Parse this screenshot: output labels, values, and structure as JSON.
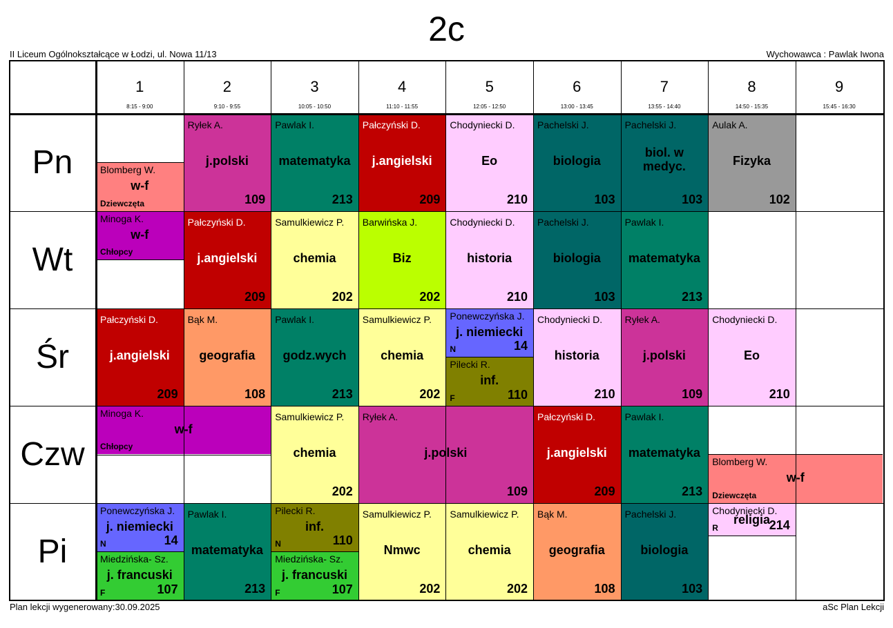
{
  "title": "2c",
  "school": "II Liceum Ogólnokształcące w Łodzi, ul. Nowa 11/13",
  "teacher": "Wychowawca : Pawlak Iwona",
  "footer_left": "Plan lekcji wygenerowany:30.09.2025",
  "footer_right": "aSc Plan Lekcji",
  "periods": [
    {
      "num": "1",
      "time": "8:15 - 9:00"
    },
    {
      "num": "2",
      "time": "9:10 - 9:55"
    },
    {
      "num": "3",
      "time": "10:05 - 10:50"
    },
    {
      "num": "4",
      "time": "11:10 - 11:55"
    },
    {
      "num": "5",
      "time": "12:05 - 12:50"
    },
    {
      "num": "6",
      "time": "13:00 - 13:45"
    },
    {
      "num": "7",
      "time": "13:55 - 14:40"
    },
    {
      "num": "8",
      "time": "14:50 - 15:35"
    },
    {
      "num": "9",
      "time": "15:45 - 16:30"
    }
  ],
  "days": [
    "Pn",
    "Wt",
    "Śr",
    "Czw",
    "Pi"
  ],
  "lessons": [
    {
      "day": 0,
      "period": 0,
      "span": 1,
      "part": "bottom",
      "teacher": "Blomberg W.",
      "subject": "w-f",
      "room": "",
      "group": "Dziewczęta",
      "color": "#ff8080"
    },
    {
      "day": 0,
      "period": 1,
      "span": 1,
      "part": "full",
      "teacher": "Ryłek A.",
      "subject": "j.polski",
      "room": "109",
      "group": "",
      "color": "#cc3399"
    },
    {
      "day": 0,
      "period": 2,
      "span": 1,
      "part": "full",
      "teacher": "Pawlak I.",
      "subject": "matematyka",
      "room": "213",
      "group": "",
      "color": "#008066"
    },
    {
      "day": 0,
      "period": 3,
      "span": 1,
      "part": "full",
      "teacher": "Pałczyński D.",
      "subject": "j.angielski",
      "room": "209",
      "group": "",
      "color": "#c00000",
      "light": true
    },
    {
      "day": 0,
      "period": 4,
      "span": 1,
      "part": "full",
      "teacher": "Chodyniecki D.",
      "subject": "Eo",
      "room": "210",
      "group": "",
      "color": "#ffccff"
    },
    {
      "day": 0,
      "period": 5,
      "span": 1,
      "part": "full",
      "teacher": "Pachelski J.",
      "subject": "biologia",
      "room": "103",
      "group": "",
      "color": "#006666"
    },
    {
      "day": 0,
      "period": 6,
      "span": 1,
      "part": "full",
      "teacher": "Pachelski J.",
      "subject": "biol. w medyc.",
      "room": "103",
      "group": "",
      "color": "#006666"
    },
    {
      "day": 0,
      "period": 7,
      "span": 1,
      "part": "full",
      "teacher": "Aulak A.",
      "subject": "Fizyka",
      "room": "102",
      "group": "",
      "color": "#999999"
    },
    {
      "day": 1,
      "period": 0,
      "span": 1,
      "part": "top",
      "teacher": "Minoga K.",
      "subject": "w-f",
      "room": "",
      "group": "Chłopcy",
      "color": "#bb00bb"
    },
    {
      "day": 1,
      "period": 1,
      "span": 1,
      "part": "full",
      "teacher": "Pałczyński D.",
      "subject": "j.angielski",
      "room": "209",
      "group": "",
      "color": "#c00000",
      "light": true
    },
    {
      "day": 1,
      "period": 2,
      "span": 1,
      "part": "full",
      "teacher": "Samulkiewicz P.",
      "subject": "chemia",
      "room": "202",
      "group": "",
      "color": "#ffff99"
    },
    {
      "day": 1,
      "period": 3,
      "span": 1,
      "part": "full",
      "teacher": "Barwińska J.",
      "subject": "Biz",
      "room": "202",
      "group": "",
      "color": "#bbff00"
    },
    {
      "day": 1,
      "period": 4,
      "span": 1,
      "part": "full",
      "teacher": "Chodyniecki D.",
      "subject": "historia",
      "room": "210",
      "group": "",
      "color": "#ffccff"
    },
    {
      "day": 1,
      "period": 5,
      "span": 1,
      "part": "full",
      "teacher": "Pachelski J.",
      "subject": "biologia",
      "room": "103",
      "group": "",
      "color": "#006666"
    },
    {
      "day": 1,
      "period": 6,
      "span": 1,
      "part": "full",
      "teacher": "Pawlak I.",
      "subject": "matematyka",
      "room": "213",
      "group": "",
      "color": "#008066"
    },
    {
      "day": 2,
      "period": 0,
      "span": 1,
      "part": "full",
      "teacher": "Pałczyński D.",
      "subject": "j.angielski",
      "room": "209",
      "group": "",
      "color": "#c00000",
      "light": true
    },
    {
      "day": 2,
      "period": 1,
      "span": 1,
      "part": "full",
      "teacher": "Bąk M.",
      "subject": "geografia",
      "room": "108",
      "group": "",
      "color": "#ff9966"
    },
    {
      "day": 2,
      "period": 2,
      "span": 1,
      "part": "full",
      "teacher": "Pawlak I.",
      "subject": "godz.wych",
      "room": "213",
      "group": "",
      "color": "#008066"
    },
    {
      "day": 2,
      "period": 3,
      "span": 1,
      "part": "full",
      "teacher": "Samulkiewicz P.",
      "subject": "chemia",
      "room": "202",
      "group": "",
      "color": "#ffff99"
    },
    {
      "day": 2,
      "period": 4,
      "span": 1,
      "part": "top",
      "teacher": "Ponewczyńska J.",
      "subject": "j. niemiecki",
      "room": "14",
      "group": "",
      "gl": "N",
      "color": "#6666ff"
    },
    {
      "day": 2,
      "period": 4,
      "span": 1,
      "part": "bottom",
      "teacher": "Pilecki R.",
      "subject": "inf.",
      "room": "110",
      "group": "",
      "gl": "F",
      "color": "#808000"
    },
    {
      "day": 2,
      "period": 5,
      "span": 1,
      "part": "full",
      "teacher": "Chodyniecki D.",
      "subject": "historia",
      "room": "210",
      "group": "",
      "color": "#ffccff"
    },
    {
      "day": 2,
      "period": 6,
      "span": 1,
      "part": "full",
      "teacher": "Ryłek A.",
      "subject": "j.polski",
      "room": "109",
      "group": "",
      "color": "#cc3399"
    },
    {
      "day": 2,
      "period": 7,
      "span": 1,
      "part": "full",
      "teacher": "Chodyniecki D.",
      "subject": "Eo",
      "room": "210",
      "group": "",
      "color": "#ffccff"
    },
    {
      "day": 3,
      "period": 0,
      "span": 2,
      "part": "top",
      "teacher": "Minoga K.",
      "subject": "w-f",
      "room": "",
      "group": "Chłopcy",
      "color": "#bb00bb"
    },
    {
      "day": 3,
      "period": 2,
      "span": 1,
      "part": "full",
      "teacher": "Samulkiewicz P.",
      "subject": "chemia",
      "room": "202",
      "group": "",
      "color": "#ffff99"
    },
    {
      "day": 3,
      "period": 3,
      "span": 2,
      "part": "full",
      "teacher": "Ryłek A.",
      "subject": "j.polski",
      "room": "109",
      "group": "",
      "color": "#cc3399"
    },
    {
      "day": 3,
      "period": 5,
      "span": 1,
      "part": "full",
      "teacher": "Pałczyński D.",
      "subject": "j.angielski",
      "room": "209",
      "group": "",
      "color": "#c00000",
      "light": true
    },
    {
      "day": 3,
      "period": 6,
      "span": 1,
      "part": "full",
      "teacher": "Pawlak I.",
      "subject": "matematyka",
      "room": "213",
      "group": "",
      "color": "#008066"
    },
    {
      "day": 3,
      "period": 7,
      "span": 2,
      "part": "bottom",
      "teacher": "Blomberg W.",
      "subject": "w-f",
      "room": "",
      "group": "Dziewczęta",
      "color": "#ff8080"
    },
    {
      "day": 4,
      "period": 0,
      "span": 1,
      "part": "top",
      "teacher": "Ponewczyńska J.",
      "subject": "j. niemiecki",
      "room": "14",
      "group": "",
      "gl": "N",
      "color": "#6666ff"
    },
    {
      "day": 4,
      "period": 0,
      "span": 1,
      "part": "bottom",
      "teacher": "Miedzińska- Sz.",
      "subject": "j. francuski",
      "room": "107",
      "group": "",
      "gl": "F",
      "color": "#33cc33"
    },
    {
      "day": 4,
      "period": 1,
      "span": 1,
      "part": "full",
      "teacher": "Pawlak I.",
      "subject": "matematyka",
      "room": "213",
      "group": "",
      "color": "#008066"
    },
    {
      "day": 4,
      "period": 2,
      "span": 1,
      "part": "top",
      "teacher": "Pilecki R.",
      "subject": "inf.",
      "room": "110",
      "group": "",
      "gl": "N",
      "color": "#808000"
    },
    {
      "day": 4,
      "period": 2,
      "span": 1,
      "part": "bottom",
      "teacher": "Miedzińska- Sz.",
      "subject": "j. francuski",
      "room": "107",
      "group": "",
      "gl": "F",
      "color": "#33cc33"
    },
    {
      "day": 4,
      "period": 3,
      "span": 1,
      "part": "full",
      "teacher": "Samulkiewicz P.",
      "subject": "Nmwc",
      "room": "202",
      "group": "",
      "color": "#ffff99"
    },
    {
      "day": 4,
      "period": 4,
      "span": 1,
      "part": "full",
      "teacher": "Samulkiewicz P.",
      "subject": "chemia",
      "room": "202",
      "group": "",
      "color": "#ffff99"
    },
    {
      "day": 4,
      "period": 5,
      "span": 1,
      "part": "full",
      "teacher": "Bąk M.",
      "subject": "geografia",
      "room": "108",
      "group": "",
      "color": "#ff9966"
    },
    {
      "day": 4,
      "period": 6,
      "span": 1,
      "part": "full",
      "teacher": "Pachelski J.",
      "subject": "biologia",
      "room": "103",
      "group": "",
      "color": "#006666"
    },
    {
      "day": 4,
      "period": 7,
      "span": 1,
      "part": "third",
      "teacher": "Chodyniecki D.",
      "subject": "religia",
      "room": "214",
      "group": "",
      "gl": "R",
      "color": "#ffccff"
    }
  ]
}
